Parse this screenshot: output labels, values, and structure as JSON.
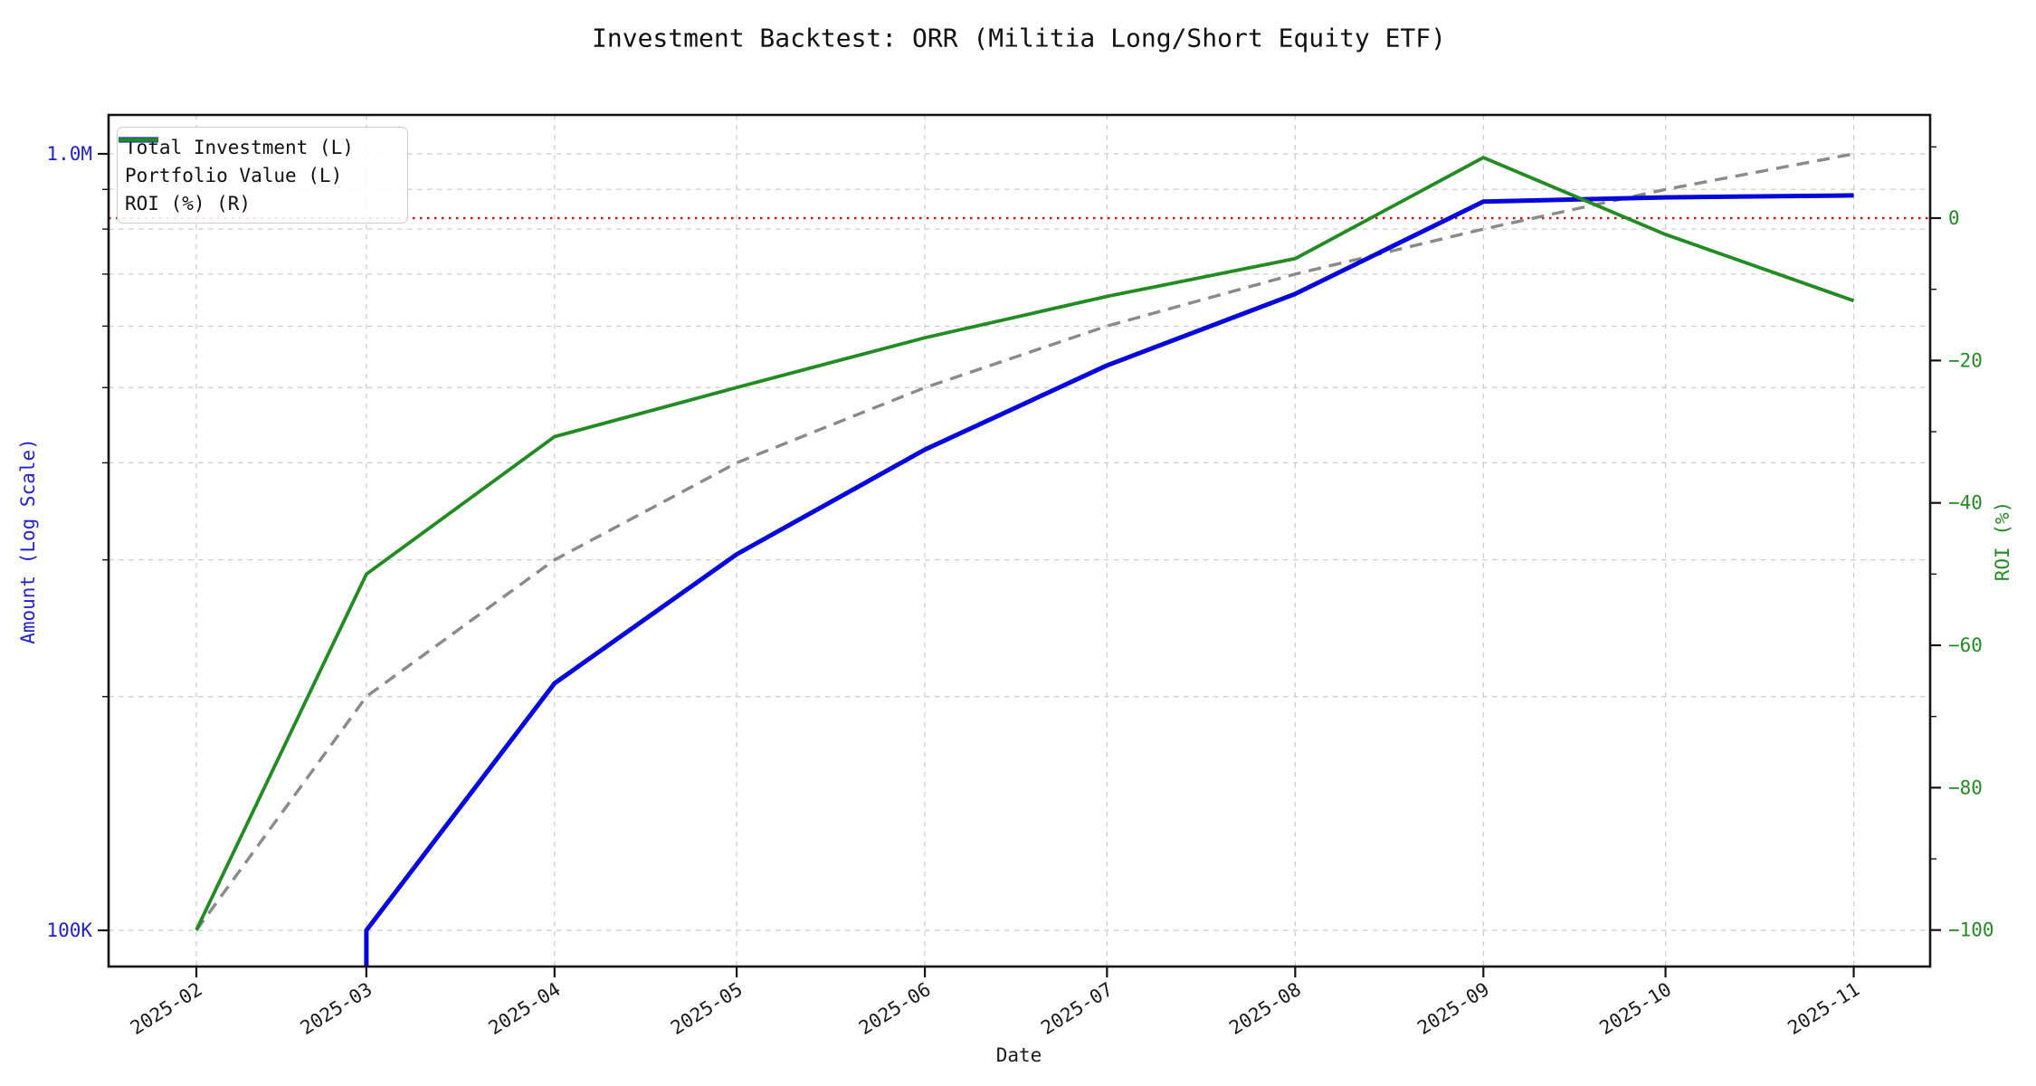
{
  "chart_data": {
    "type": "line",
    "title": "Investment Backtest: ORR (Militia Long/Short Equity ETF)",
    "xlabel": "Date",
    "ylabel_left": "Amount (Log Scale)",
    "ylabel_right": "ROI (%)",
    "x": [
      "2025-02",
      "2025-03",
      "2025-04",
      "2025-05",
      "2025-06",
      "2025-07",
      "2025-08",
      "2025-09",
      "2025-10",
      "2025-11"
    ],
    "left_axis": {
      "scale": "log",
      "min": 100000,
      "max": 1000000,
      "major_ticks": [
        {
          "value": 100000,
          "label": "100K"
        },
        {
          "value": 1000000,
          "label": "1.0M"
        }
      ],
      "minor_tick_values": [
        200000,
        300000,
        400000,
        500000,
        600000,
        700000,
        800000,
        900000
      ],
      "grid_values": [
        100000,
        200000,
        300000,
        400000,
        500000,
        600000,
        700000,
        800000,
        900000,
        1000000
      ]
    },
    "right_axis": {
      "scale": "linear",
      "unit": "%",
      "major_ticks": [
        {
          "value": 0,
          "label": "0"
        },
        {
          "value": -20,
          "label": "−20"
        },
        {
          "value": -40,
          "label": "−40"
        },
        {
          "value": -60,
          "label": "−60"
        },
        {
          "value": -80,
          "label": "−80"
        },
        {
          "value": -100,
          "label": "−100"
        }
      ],
      "minor_tick_values": [
        10,
        -10,
        -30,
        -50,
        -70,
        -90
      ]
    },
    "series": [
      {
        "name": "Total Investment (L)",
        "axis": "left",
        "style": "dashed",
        "color": "#8a8a8a",
        "values": [
          100000,
          200000,
          300000,
          400000,
          500000,
          600000,
          700000,
          800000,
          900000,
          1000000
        ]
      },
      {
        "name": "Portfolio Value (L)",
        "axis": "left",
        "style": "solid",
        "color": "#0505dc",
        "starts_below_axis": true,
        "values": [
          null,
          100000,
          208000,
          305000,
          416000,
          534000,
          660000,
          868000,
          879000,
          884000
        ]
      },
      {
        "name": "ROI (%) (R)",
        "axis": "right",
        "style": "solid",
        "color": "#228b22",
        "values": [
          -100,
          -50,
          -30.7,
          -23.8,
          -16.8,
          -11.0,
          -5.7,
          8.5,
          -2.3,
          -11.6
        ]
      }
    ],
    "reference_line": {
      "axis": "right",
      "value": 0,
      "color": "#cc1515",
      "style": "dotted"
    },
    "legend": {
      "position": "upper-left",
      "entries": [
        {
          "label": "Total Investment (L)",
          "color": "#8a8a8a",
          "style": "dashed"
        },
        {
          "label": "Portfolio Value (L)",
          "color": "#0505dc",
          "style": "solid"
        },
        {
          "label": "ROI (%) (R)",
          "color": "#228b22",
          "style": "solid"
        }
      ]
    }
  },
  "colors": {
    "left_axis_text": "#2222cc",
    "right_axis_text": "#228b22",
    "x_axis_text": "#1b1b1b",
    "grid": "#cdcdcd",
    "spine": "#141414",
    "background": "#ffffff"
  }
}
